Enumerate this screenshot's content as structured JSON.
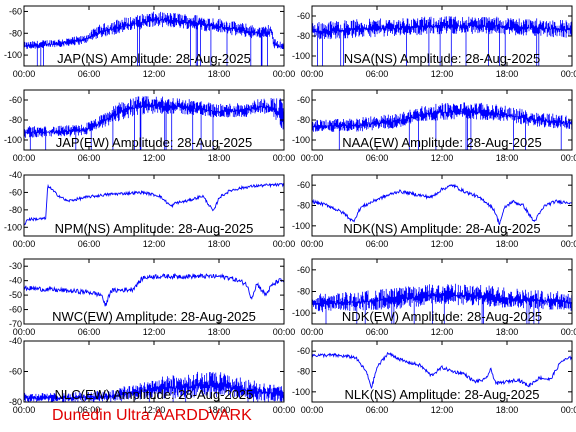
{
  "credit": "Dunedin Ultra AARDDVARK",
  "colors": {
    "trace": "#0000ff",
    "axes": "#000000",
    "background": "#ffffff",
    "credit": "#e00000"
  },
  "chart_data": [
    {
      "type": "line",
      "title": "JAP(NS) Amplitude: 28-Aug-2025",
      "x_tick_labels": [
        "00:00",
        "06:00",
        "12:00",
        "18:00",
        "00:00"
      ],
      "y_ticks": [
        -100,
        -80,
        -60
      ],
      "ylim": [
        -110,
        -55
      ],
      "grid": false,
      "series": [
        {
          "x_hours": [
            0,
            2,
            4,
            5.5,
            7,
            9,
            10.5,
            12,
            14,
            16,
            18,
            20,
            22,
            22.8,
            23.1,
            24
          ],
          "upper": [
            -88,
            -86,
            -84,
            -82,
            -72,
            -66,
            -63,
            -60,
            -61,
            -63,
            -66,
            -70,
            -74,
            -71,
            -85,
            -88
          ],
          "lower": [
            -95,
            -94,
            -92,
            -90,
            -84,
            -80,
            -77,
            -74,
            -75,
            -77,
            -80,
            -83,
            -86,
            -83,
            -95,
            -96
          ]
        }
      ]
    },
    {
      "type": "line",
      "title": "NSA(NS) Amplitude: 28-Aug-2025",
      "x_tick_labels": [
        "00:00",
        "06:00",
        "12:00",
        "18:00",
        "00:00"
      ],
      "y_ticks": [
        -100,
        -80,
        -60
      ],
      "ylim": [
        -110,
        -50
      ],
      "grid": false,
      "series": [
        {
          "x_hours": [
            0,
            4,
            8,
            12,
            16,
            20,
            24
          ],
          "upper": [
            -66,
            -63,
            -62,
            -60,
            -60,
            -62,
            -64
          ],
          "lower": [
            -84,
            -82,
            -80,
            -78,
            -78,
            -80,
            -82
          ]
        }
      ]
    },
    {
      "type": "line",
      "title": "JAP(EW) Amplitude: 28-Aug-2025",
      "x_tick_labels": [
        "00:00",
        "06:00",
        "12:00",
        "18:00",
        "00:00"
      ],
      "y_ticks": [
        -100,
        -80,
        -60
      ],
      "ylim": [
        -110,
        -50
      ],
      "grid": false,
      "series": [
        {
          "x_hours": [
            0,
            3,
            5.5,
            7,
            9,
            10.5,
            12,
            14,
            16,
            18,
            20,
            22,
            23,
            24
          ],
          "upper": [
            -86,
            -86,
            -84,
            -76,
            -60,
            -56,
            -56,
            -57,
            -60,
            -64,
            -62,
            -58,
            -57,
            -58
          ],
          "lower": [
            -98,
            -97,
            -96,
            -90,
            -80,
            -76,
            -74,
            -74,
            -76,
            -78,
            -78,
            -74,
            -76,
            -96
          ]
        }
      ]
    },
    {
      "type": "line",
      "title": "NAA(EW) Amplitude: 28-Aug-2025",
      "x_tick_labels": [
        "00:00",
        "06:00",
        "12:00",
        "18:00",
        "00:00"
      ],
      "y_ticks": [
        -100,
        -80,
        -60
      ],
      "ylim": [
        -110,
        -50
      ],
      "grid": false,
      "series": [
        {
          "x_hours": [
            0,
            4,
            8,
            10,
            12,
            14,
            16,
            18,
            20,
            24
          ],
          "upper": [
            -80,
            -78,
            -73,
            -66,
            -63,
            -62,
            -63,
            -66,
            -70,
            -76
          ],
          "lower": [
            -92,
            -92,
            -88,
            -82,
            -80,
            -79,
            -80,
            -82,
            -86,
            -90
          ]
        }
      ]
    },
    {
      "type": "line",
      "title": "NPM(NS) Amplitude: 28-Aug-2025",
      "x_tick_labels": [
        "00:00",
        "06:00",
        "12:00",
        "18:00",
        "00:00"
      ],
      "y_ticks": [
        -100,
        -80,
        -60,
        -40
      ],
      "ylim": [
        -110,
        -40
      ],
      "grid": false,
      "series": [
        {
          "x_hours": [
            0,
            0.3,
            2.0,
            2.2,
            3,
            4,
            6,
            8,
            9.5,
            11,
            12.5,
            13.6,
            14,
            15,
            16.5,
            17.5,
            18,
            19,
            20,
            21,
            22,
            24
          ],
          "y": [
            -98,
            -91,
            -90,
            -52,
            -62,
            -70,
            -65,
            -62,
            -61,
            -60,
            -64,
            -76,
            -72,
            -70,
            -64,
            -82,
            -66,
            -58,
            -55,
            -53,
            -52,
            -51
          ]
        }
      ]
    },
    {
      "type": "line",
      "title": "NDK(NS) Amplitude: 28-Aug-2025",
      "x_tick_labels": [
        "00:00",
        "06:00",
        "12:00",
        "18:00",
        "00:00"
      ],
      "y_ticks": [
        -100,
        -80,
        -60
      ],
      "ylim": [
        -110,
        -50
      ],
      "grid": false,
      "series": [
        {
          "x_hours": [
            0,
            1.5,
            3,
            3.8,
            4.5,
            6,
            8,
            10,
            11,
            12,
            13,
            14,
            15,
            16,
            16.8,
            17.3,
            17.8,
            18.5,
            19.5,
            20.5,
            21.5,
            22.5,
            24
          ],
          "y": [
            -76,
            -80,
            -88,
            -96,
            -82,
            -74,
            -66,
            -70,
            -72,
            -64,
            -60,
            -66,
            -70,
            -76,
            -84,
            -98,
            -82,
            -76,
            -80,
            -96,
            -80,
            -76,
            -77
          ]
        }
      ]
    },
    {
      "type": "line",
      "title": "NWC(EW) Amplitude: 28-Aug-2025",
      "x_tick_labels": [
        "00:00",
        "06:00",
        "12:00",
        "18:00",
        "00:00"
      ],
      "y_ticks": [
        -70,
        -60,
        -50,
        -40,
        -30
      ],
      "ylim": [
        -70,
        -25
      ],
      "grid": false,
      "series": [
        {
          "x_hours": [
            0,
            2,
            4,
            6,
            7.2,
            7.5,
            8,
            10,
            11,
            12,
            14,
            16,
            18,
            19,
            20.5,
            21,
            21.5,
            22.3,
            22.8,
            23.5,
            24
          ],
          "y": [
            -45,
            -46,
            -47,
            -48,
            -50,
            -58,
            -47,
            -46,
            -38,
            -37,
            -37,
            -37,
            -37,
            -38,
            -42,
            -52,
            -42,
            -50,
            -44,
            -40,
            -40
          ]
        }
      ]
    },
    {
      "type": "line",
      "title": "NDK(EW) Amplitude: 28-Aug-2025",
      "x_tick_labels": [
        "00:00",
        "06:00",
        "12:00",
        "18:00",
        "00:00"
      ],
      "y_ticks": [
        -100,
        -80,
        -60
      ],
      "ylim": [
        -110,
        -50
      ],
      "grid": false,
      "series": [
        {
          "x_hours": [
            0,
            4,
            8,
            12,
            16,
            20,
            24
          ],
          "upper": [
            -82,
            -80,
            -76,
            -72,
            -74,
            -78,
            -80
          ],
          "lower": [
            -100,
            -98,
            -96,
            -92,
            -94,
            -96,
            -98
          ]
        }
      ]
    },
    {
      "type": "line",
      "title": "NLC(EW) Amplitude: 28-Aug-2025",
      "x_tick_labels": [
        "00:00",
        "06:00",
        "12:00",
        "18:00",
        "00:00"
      ],
      "y_ticks": [
        -80,
        -60,
        -40
      ],
      "ylim": [
        -80,
        -40
      ],
      "grid": false,
      "series": [
        {
          "x_hours": [
            0,
            4,
            8,
            10,
            12,
            14,
            16,
            18,
            20,
            24
          ],
          "upper": [
            -74,
            -74,
            -72,
            -68,
            -64,
            -62,
            -60,
            -60,
            -64,
            -70
          ],
          "lower": [
            -80,
            -80,
            -80,
            -79,
            -78,
            -78,
            -77,
            -77,
            -78,
            -80
          ]
        }
      ]
    },
    {
      "type": "line",
      "title": "NLK(NS) Amplitude: 28-Aug-2025",
      "x_tick_labels": [
        "00:00",
        "06:00",
        "12:00",
        "18:00",
        "00:00"
      ],
      "y_ticks": [
        -100,
        -80,
        -60
      ],
      "ylim": [
        -110,
        -50
      ],
      "grid": false,
      "series": [
        {
          "x_hours": [
            0,
            2,
            4,
            5,
            5.5,
            6,
            7,
            8.5,
            10,
            11,
            12,
            13,
            14,
            15,
            16,
            16.5,
            17,
            18,
            19,
            20,
            21,
            22,
            23,
            24
          ],
          "y": [
            -64,
            -64,
            -66,
            -80,
            -96,
            -76,
            -62,
            -70,
            -74,
            -84,
            -76,
            -80,
            -82,
            -90,
            -88,
            -78,
            -92,
            -90,
            -88,
            -94,
            -86,
            -88,
            -70,
            -66
          ]
        }
      ]
    }
  ]
}
